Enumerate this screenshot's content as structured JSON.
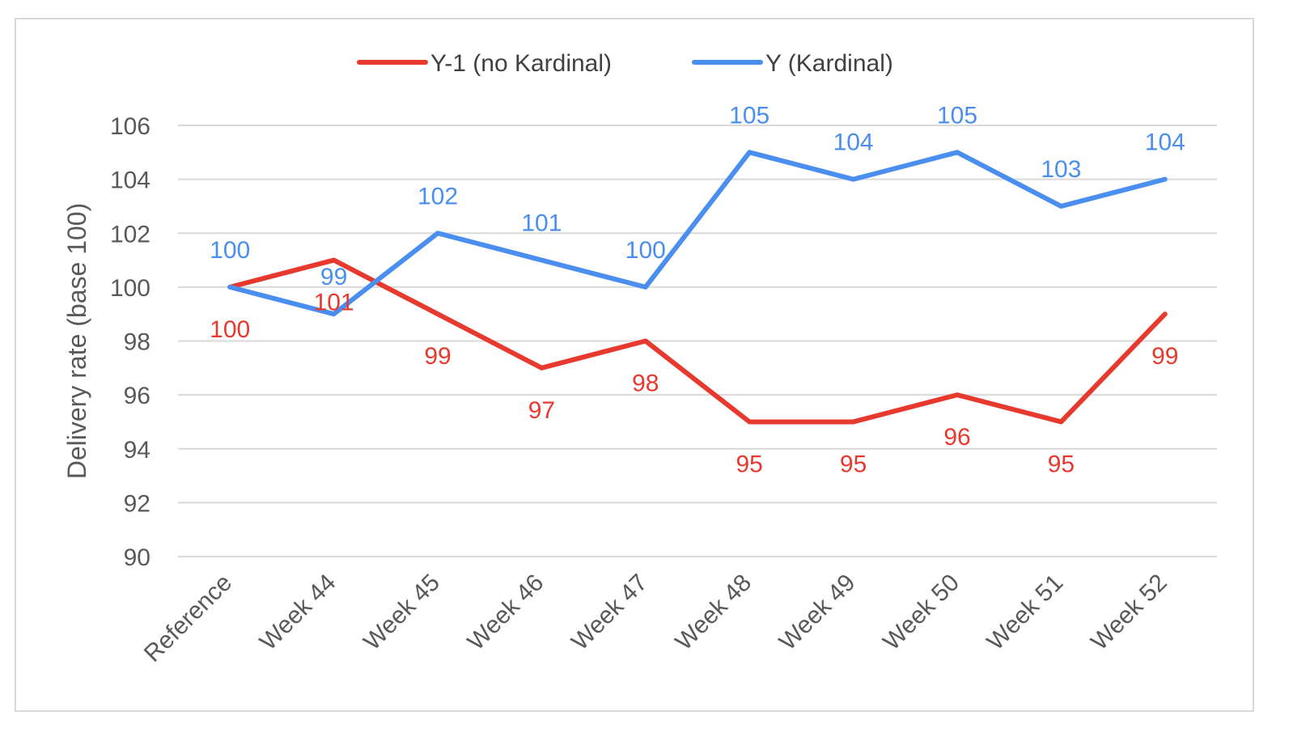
{
  "chart_data": {
    "type": "line",
    "title": "",
    "xlabel": "",
    "ylabel": "Delivery rate (base 100)",
    "categories": [
      "Reference",
      "Week 44",
      "Week 45",
      "Week 46",
      "Week 47",
      "Week 48",
      "Week 49",
      "Week 50",
      "Week 51",
      "Week 52"
    ],
    "ylim": [
      90,
      106
    ],
    "yticks": [
      90,
      92,
      94,
      96,
      98,
      100,
      102,
      104,
      106
    ],
    "grid": "horizontal",
    "legend_position": "top",
    "series": [
      {
        "name": "Y-1 (no Kardinal)",
        "color": "#e8392f",
        "values": [
          100,
          101,
          99,
          97,
          98,
          95,
          95,
          96,
          95,
          99
        ],
        "label_position": "below"
      },
      {
        "name": "Y (Kardinal)",
        "color": "#4a8ef0",
        "values": [
          100,
          99,
          102,
          101,
          100,
          105,
          104,
          105,
          103,
          104
        ],
        "label_position": "above"
      }
    ],
    "colors": {
      "grid": "#d9d9d9",
      "text": "#595959",
      "border": "#d9d9d9"
    }
  }
}
